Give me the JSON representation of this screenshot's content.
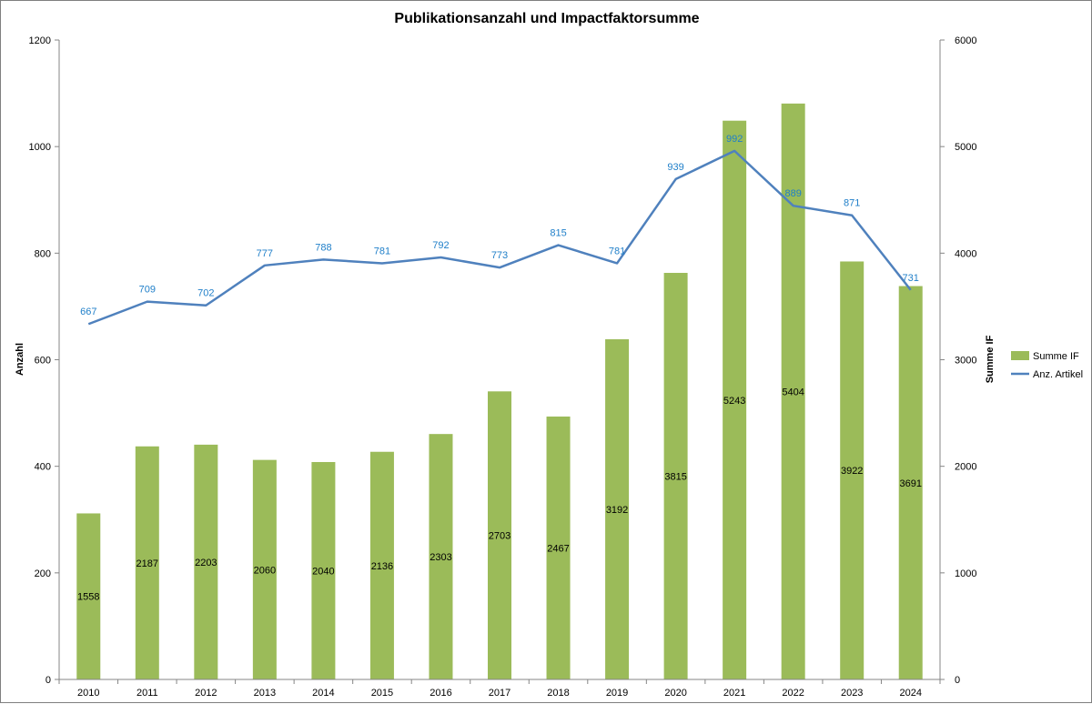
{
  "chart_data": {
    "type": "bar",
    "title": "Publikationsanzahl und Impactfaktorsumme",
    "categories": [
      "2010",
      "2011",
      "2012",
      "2013",
      "2014",
      "2015",
      "2016",
      "2017",
      "2018",
      "2019",
      "2020",
      "2021",
      "2022",
      "2023",
      "2024"
    ],
    "y_left": {
      "label": "Anzahl",
      "min": 0,
      "max": 1200,
      "ticks": [
        0,
        200,
        400,
        600,
        800,
        1000,
        1200
      ]
    },
    "y_right": {
      "label": "Summe IF",
      "min": 0,
      "max": 6000,
      "ticks": [
        0,
        1000,
        2000,
        3000,
        4000,
        5000,
        6000
      ]
    },
    "series": [
      {
        "name": "Summe IF",
        "kind": "bar",
        "axis": "right",
        "color": "#9bbb59",
        "values": [
          1558,
          2187,
          2203,
          2060,
          2040,
          2136,
          2303,
          2703,
          2467,
          3192,
          3815,
          5243,
          5404,
          3922,
          3691
        ]
      },
      {
        "name": "Anz. Artikel",
        "kind": "line",
        "axis": "left",
        "color": "#4f81bd",
        "values": [
          667,
          709,
          702,
          777,
          788,
          781,
          792,
          773,
          815,
          781,
          939,
          992,
          889,
          871,
          731
        ]
      }
    ],
    "legend_position": "right",
    "grid": false
  }
}
